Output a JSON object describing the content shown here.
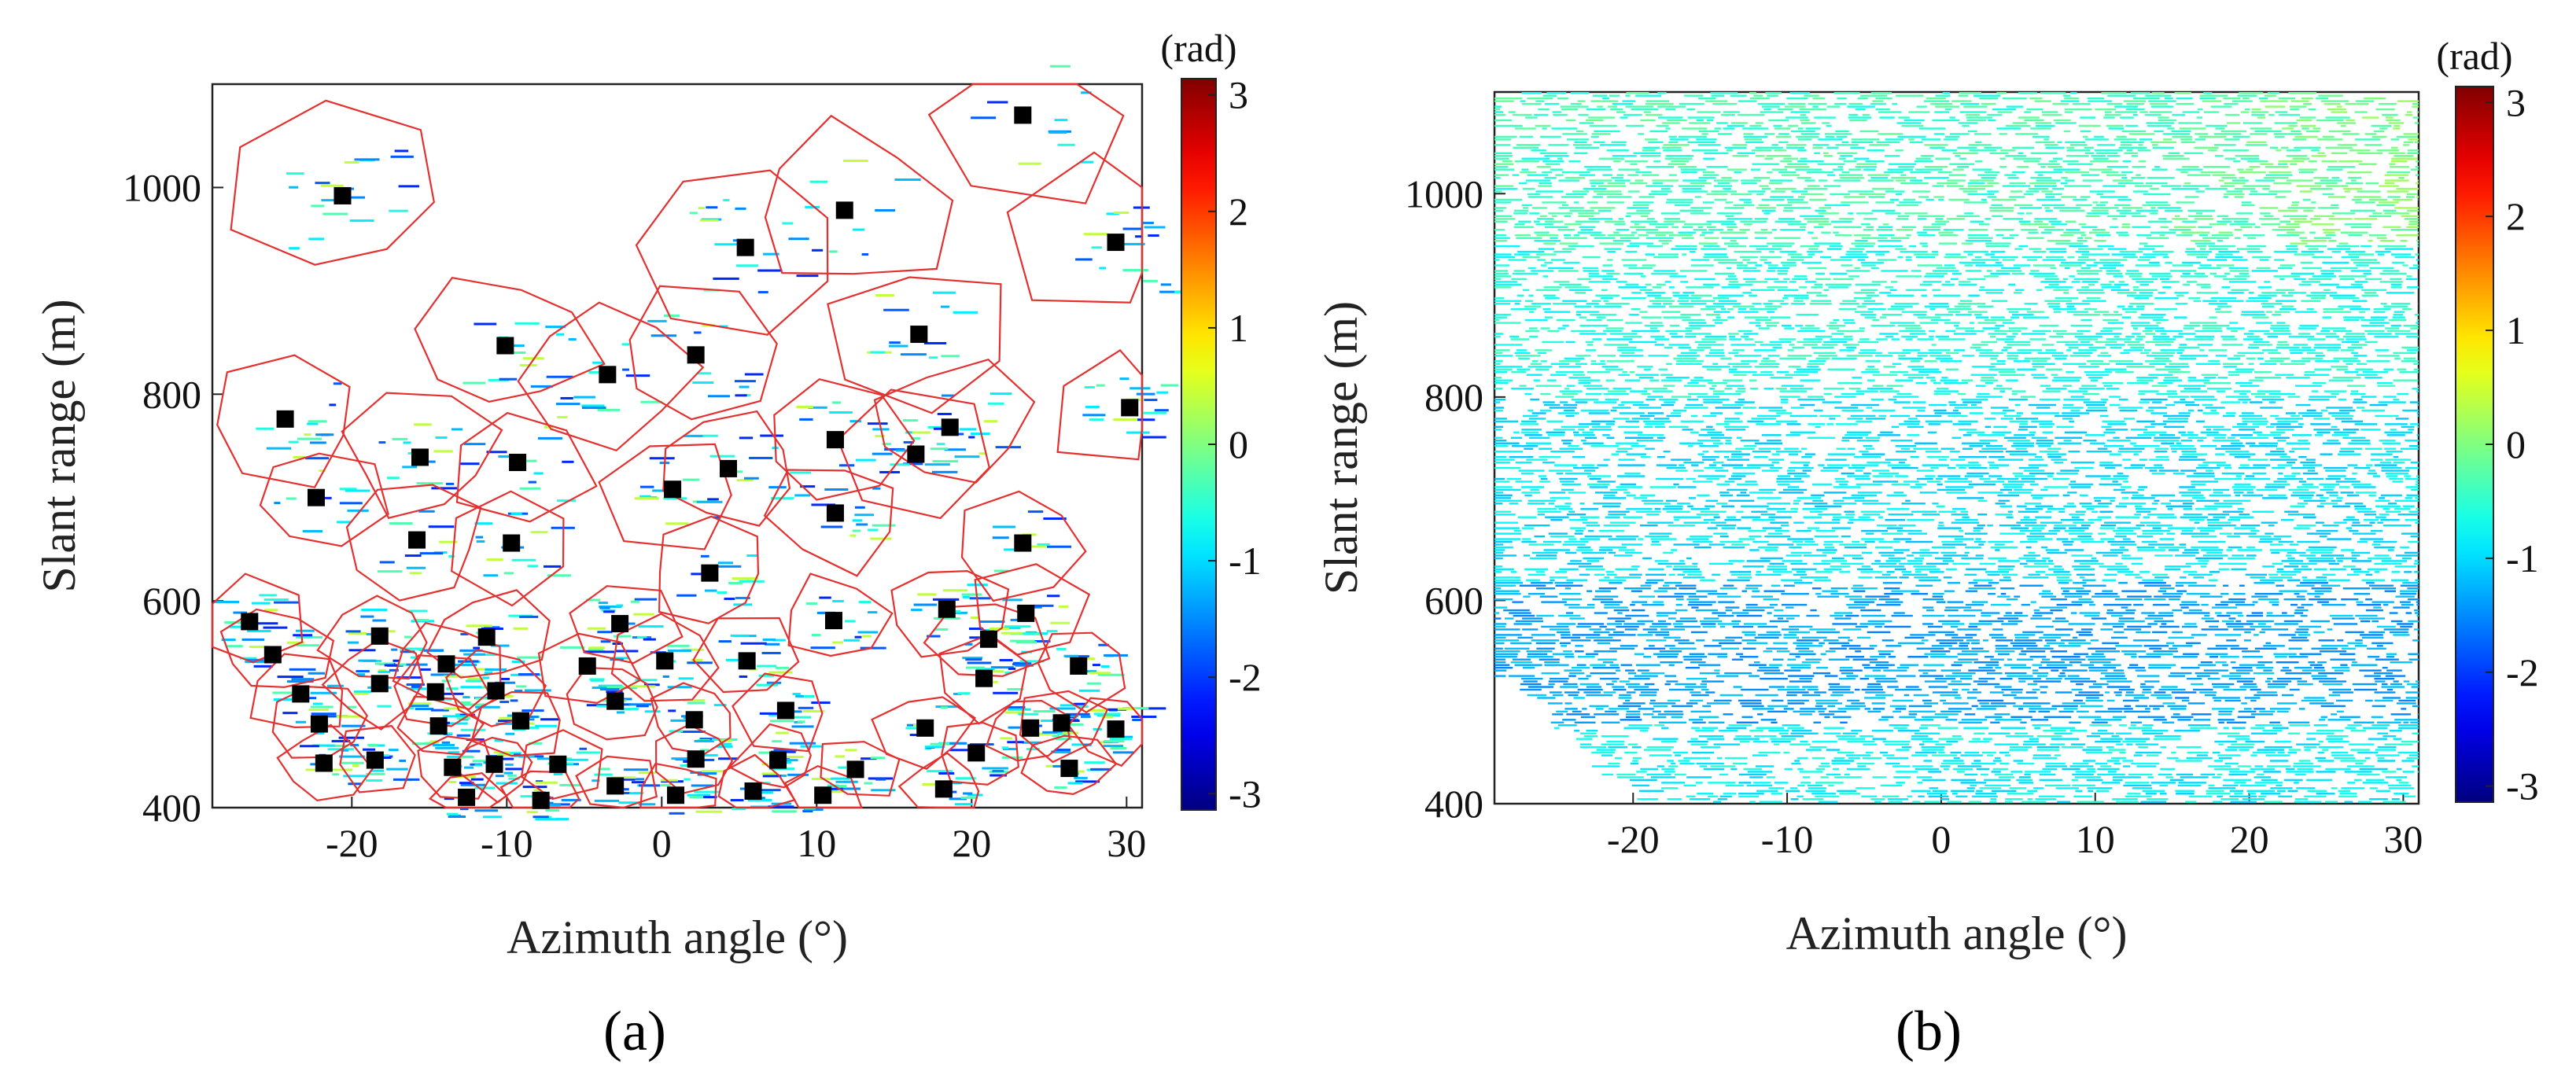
{
  "chart_data": [
    {
      "id": "a",
      "type": "scatter",
      "panel_label": "(a)",
      "xlabel": "Azimuth angle (°)",
      "ylabel": "Slant range (m)",
      "xlim": [
        -29,
        31
      ],
      "ylim": [
        400,
        1100
      ],
      "xticks": [
        -20,
        -10,
        0,
        10,
        20,
        30
      ],
      "yticks": [
        400,
        600,
        800,
        1000
      ],
      "colorbar": {
        "unit": "(rad)",
        "range": [
          -3.14,
          3.14
        ],
        "ticks": [
          3,
          2,
          1,
          0,
          -1,
          -2,
          -3
        ],
        "colormap": "jet"
      },
      "series": [
        {
          "name": "cluster centers",
          "marker": "square",
          "points": [
            [
              23.3,
              1070
            ],
            [
              -20.6,
              992
            ],
            [
              11.8,
              978
            ],
            [
              29.3,
              947
            ],
            [
              5.4,
              942
            ],
            [
              -10.1,
              847
            ],
            [
              16.6,
              858
            ],
            [
              2.2,
              838
            ],
            [
              -3.5,
              819
            ],
            [
              30.2,
              787
            ],
            [
              -24.3,
              776
            ],
            [
              -15.6,
              739
            ],
            [
              -9.3,
              734
            ],
            [
              11.2,
              756
            ],
            [
              18.6,
              768
            ],
            [
              16.4,
              742
            ],
            [
              -22.3,
              700
            ],
            [
              4.3,
              728
            ],
            [
              0.7,
              708
            ],
            [
              11.2,
              685
            ],
            [
              -15.8,
              659
            ],
            [
              -9.7,
              656
            ],
            [
              23.3,
              656
            ],
            [
              3.1,
              627
            ],
            [
              -26.6,
              580
            ],
            [
              -18.2,
              566
            ],
            [
              -11.3,
              565
            ],
            [
              -2.7,
              578
            ],
            [
              11.1,
              581
            ],
            [
              18.4,
              592
            ],
            [
              23.5,
              588
            ],
            [
              21.1,
              563
            ],
            [
              -25.1,
              548
            ],
            [
              5.5,
              542
            ],
            [
              0.2,
              542
            ],
            [
              -13.9,
              539
            ],
            [
              -4.8,
              537
            ],
            [
              26.9,
              537
            ],
            [
              -18.2,
              520
            ],
            [
              -14.6,
              512
            ],
            [
              -10.7,
              513
            ],
            [
              -3.0,
              503
            ],
            [
              20.8,
              525
            ],
            [
              -23.3,
              510
            ],
            [
              -22.1,
              481
            ],
            [
              -14.4,
              479
            ],
            [
              -9.1,
              484
            ],
            [
              2.1,
              485
            ],
            [
              8.0,
              494
            ],
            [
              17.0,
              477
            ],
            [
              23.8,
              477
            ],
            [
              25.8,
              482
            ],
            [
              29.3,
              476
            ],
            [
              -21.8,
              443
            ],
            [
              -18.5,
              446
            ],
            [
              -13.5,
              439
            ],
            [
              -10.8,
              442
            ],
            [
              -6.7,
              442
            ],
            [
              2.2,
              447
            ],
            [
              7.5,
              446
            ],
            [
              12.5,
              437
            ],
            [
              20.3,
              453
            ],
            [
              26.3,
              438
            ],
            [
              -3.0,
              421
            ],
            [
              5.9,
              416
            ],
            [
              18.2,
              418
            ],
            [
              -12.6,
              410
            ],
            [
              -7.8,
              407
            ],
            [
              0.9,
              412
            ],
            [
              10.4,
              412
            ]
          ]
        },
        {
          "name": "sparse phase estimates",
          "values": [
            -1.2,
            -0.9,
            -0.6,
            -1.5,
            -2.1,
            -0.3,
            0.4,
            -1.8
          ]
        }
      ]
    },
    {
      "id": "b",
      "type": "heatmap",
      "panel_label": "(b)",
      "xlabel": "Azimuth angle (°)",
      "ylabel": "Slant range (m)",
      "xlim": [
        -29,
        31
      ],
      "ylim": [
        400,
        1100
      ],
      "xticks": [
        -20,
        -10,
        0,
        10,
        20,
        30
      ],
      "yticks": [
        400,
        600,
        800,
        1000
      ],
      "colorbar": {
        "unit": "(rad)",
        "range": [
          -3.14,
          3.14
        ],
        "ticks": [
          3,
          2,
          1,
          0,
          -1,
          -2,
          -3
        ],
        "colormap": "jet"
      },
      "field": {
        "range_bands": [
          {
            "range": [
              400,
              480
            ],
            "phase": -0.8
          },
          {
            "range": [
              480,
              620
            ],
            "phase": -1.3
          },
          {
            "range": [
              620,
              800
            ],
            "phase": -0.9
          },
          {
            "range": [
              800,
              950
            ],
            "phase": -0.6
          },
          {
            "range": [
              950,
              1100
            ],
            "phase": -0.4
          }
        ],
        "upper_right_phase": 0.0
      }
    }
  ]
}
